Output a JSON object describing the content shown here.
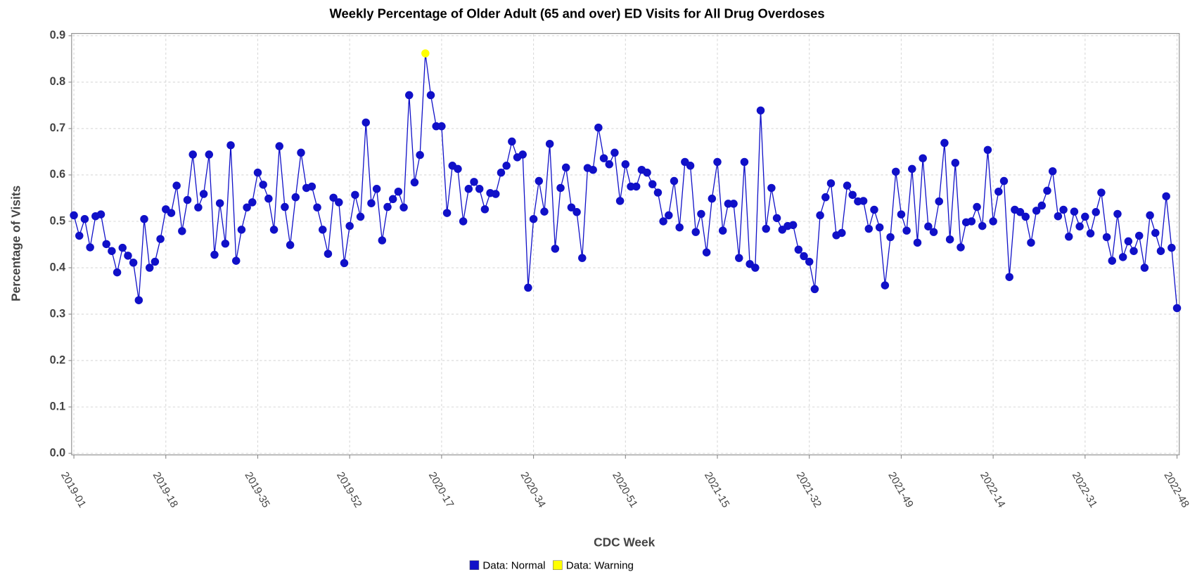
{
  "chart_data": {
    "type": "line",
    "title": "Weekly Percentage of Older Adult (65 and over) ED Visits for All Drug Overdoses",
    "x_label": "CDC Week",
    "y_label": "Percentage of Visits",
    "categories": [
      "2019-01",
      null,
      null,
      null,
      null,
      null,
      null,
      null,
      null,
      null,
      null,
      null,
      null,
      null,
      null,
      null,
      null,
      "2019-18",
      null,
      null,
      null,
      null,
      null,
      null,
      null,
      null,
      null,
      null,
      null,
      null,
      null,
      null,
      null,
      null,
      "2019-35",
      null,
      null,
      null,
      null,
      null,
      null,
      null,
      null,
      null,
      null,
      null,
      null,
      null,
      null,
      null,
      null,
      "2019-52",
      null,
      null,
      null,
      null,
      null,
      null,
      null,
      null,
      null,
      null,
      null,
      null,
      null,
      null,
      null,
      null,
      "2020-17",
      null,
      null,
      null,
      null,
      null,
      null,
      null,
      null,
      null,
      null,
      null,
      null,
      null,
      null,
      null,
      null,
      "2020-34",
      null,
      null,
      null,
      null,
      null,
      null,
      null,
      null,
      null,
      null,
      null,
      null,
      null,
      null,
      null,
      null,
      "2020-51",
      null,
      null,
      null,
      null,
      null,
      null,
      null,
      null,
      null,
      null,
      null,
      null,
      null,
      null,
      null,
      null,
      "2021-15",
      null,
      null,
      null,
      null,
      null,
      null,
      null,
      null,
      null,
      null,
      null,
      null,
      null,
      null,
      null,
      null,
      "2021-32",
      null,
      null,
      null,
      null,
      null,
      null,
      null,
      null,
      null,
      null,
      null,
      null,
      null,
      null,
      null,
      null,
      "2021-49",
      null,
      null,
      null,
      null,
      null,
      null,
      null,
      null,
      null,
      null,
      null,
      null,
      null,
      null,
      null,
      null,
      "2022-14",
      null,
      null,
      null,
      null,
      null,
      null,
      null,
      null,
      null,
      null,
      null,
      null,
      null,
      null,
      null,
      null,
      "2022-31",
      null,
      null,
      null,
      null,
      null,
      null,
      null,
      null,
      null,
      null,
      null,
      null,
      null,
      null,
      null,
      null,
      "2022-48"
    ],
    "series": [
      {
        "name": "Data: Normal",
        "color": "#1010c8",
        "values": [
          0.513,
          0.469,
          0.505,
          0.444,
          0.511,
          0.515,
          0.451,
          0.436,
          0.39,
          0.443,
          0.426,
          0.411,
          0.33,
          0.505,
          0.4,
          0.413,
          0.462,
          0.526,
          0.518,
          0.577,
          0.479,
          0.546,
          0.644,
          0.53,
          0.559,
          0.644,
          0.428,
          0.539,
          0.452,
          0.664,
          0.415,
          0.482,
          0.53,
          0.541,
          0.605,
          0.579,
          0.549,
          0.482,
          0.662,
          0.531,
          0.449,
          0.552,
          0.648,
          0.572,
          0.575,
          0.53,
          0.482,
          0.43,
          0.551,
          0.541,
          0.41,
          0.49,
          0.557,
          0.51,
          0.713,
          0.539,
          0.57,
          0.459,
          0.531,
          0.548,
          0.564,
          0.53,
          0.772,
          0.584,
          0.643,
          null,
          0.772,
          0.705,
          0.705,
          0.518,
          0.62,
          0.613,
          0.5,
          0.57,
          0.585,
          0.57,
          0.526,
          0.561,
          0.559,
          0.605,
          0.62,
          0.672,
          0.638,
          0.644,
          0.357,
          0.505,
          0.587,
          0.521,
          0.667,
          0.441,
          0.572,
          0.616,
          0.53,
          0.52,
          0.421,
          0.615,
          0.611,
          0.702,
          0.636,
          0.623,
          0.648,
          0.544,
          0.623,
          0.575,
          0.575,
          0.611,
          0.605,
          0.58,
          0.562,
          0.5,
          0.513,
          0.587,
          0.487,
          0.628,
          0.62,
          0.477,
          0.516,
          0.433,
          0.549,
          0.628,
          0.48,
          0.538,
          0.538,
          0.421,
          0.628,
          0.408,
          0.4,
          0.739,
          0.484,
          0.572,
          0.507,
          0.482,
          0.49,
          0.492,
          0.439,
          0.425,
          0.413,
          0.354,
          0.513,
          0.552,
          0.582,
          0.47,
          0.475,
          0.577,
          0.557,
          0.543,
          0.544,
          0.484,
          0.525,
          0.487,
          0.362,
          0.466,
          0.607,
          0.515,
          0.48,
          0.613,
          0.454,
          0.636,
          0.489,
          0.477,
          0.543,
          0.669,
          0.461,
          0.626,
          0.444,
          0.498,
          0.5,
          0.531,
          0.49,
          0.654,
          0.5,
          0.564,
          0.587,
          0.38,
          0.525,
          0.52,
          0.51,
          0.454,
          0.523,
          0.534,
          0.566,
          0.608,
          0.511,
          0.525,
          0.467,
          0.521,
          0.489,
          0.51,
          0.474,
          0.52,
          0.562,
          0.466,
          0.415,
          0.516,
          0.423,
          0.457,
          0.436,
          0.469,
          0.4,
          0.513,
          0.475,
          0.436,
          0.554,
          0.443,
          0.313
        ]
      },
      {
        "name": "Data: Warning",
        "color": "#ffff00",
        "values": [
          null,
          null,
          null,
          null,
          null,
          null,
          null,
          null,
          null,
          null,
          null,
          null,
          null,
          null,
          null,
          null,
          null,
          null,
          null,
          null,
          null,
          null,
          null,
          null,
          null,
          null,
          null,
          null,
          null,
          null,
          null,
          null,
          null,
          null,
          null,
          null,
          null,
          null,
          null,
          null,
          null,
          null,
          null,
          null,
          null,
          null,
          null,
          null,
          null,
          null,
          null,
          null,
          null,
          null,
          null,
          null,
          null,
          null,
          null,
          null,
          null,
          null,
          null,
          null,
          null,
          0.862,
          null,
          null,
          null,
          null,
          null,
          null,
          null,
          null,
          null,
          null,
          null,
          null,
          null,
          null,
          null,
          null,
          null,
          null,
          null,
          null,
          null,
          null,
          null,
          null,
          null,
          null,
          null,
          null,
          null,
          null,
          null,
          null,
          null,
          null,
          null,
          null,
          null,
          null,
          null,
          null,
          null,
          null,
          null,
          null,
          null,
          null,
          null,
          null,
          null,
          null,
          null,
          null,
          null,
          null,
          null,
          null,
          null,
          null,
          null,
          null,
          null,
          null,
          null,
          null,
          null,
          null,
          null,
          null,
          null,
          null,
          null,
          null,
          null,
          null,
          null,
          null,
          null,
          null,
          null,
          null,
          null,
          null,
          null,
          null,
          null,
          null,
          null,
          null,
          null,
          null,
          null,
          null,
          null,
          null,
          null,
          null,
          null,
          null,
          null,
          null,
          null,
          null,
          null,
          null,
          null,
          null,
          null,
          null,
          null,
          null,
          null,
          null,
          null,
          null,
          null,
          null,
          null,
          null,
          null,
          null,
          null,
          null,
          null,
          null,
          null,
          null,
          null,
          null,
          null,
          null,
          null,
          null,
          null,
          null,
          null,
          null,
          null,
          null,
          null
        ]
      }
    ],
    "ylim": [
      0,
      0.9
    ],
    "yticks": [
      {
        "value": 0,
        "label": "0.0"
      },
      0.1,
      0.2,
      0.3,
      0.4,
      0.5,
      0.6,
      0.7,
      0.8,
      0.9
    ],
    "grid": true
  }
}
